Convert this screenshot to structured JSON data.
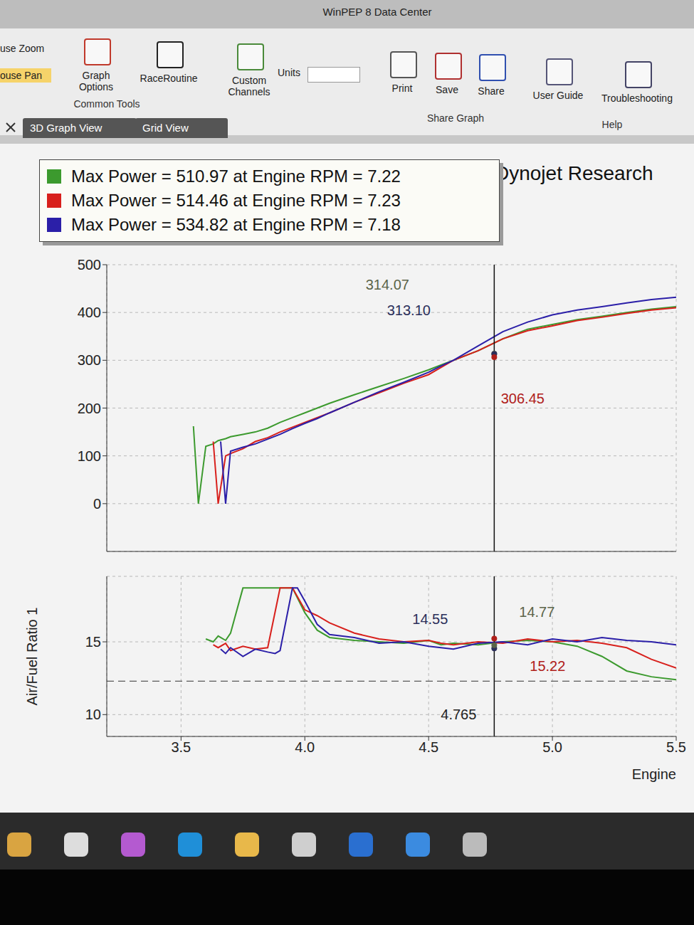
{
  "screen": {
    "window_title": "WinPEP 8 Data Center",
    "toolbar": [
      "use Zoom",
      "ouse Pan",
      "Graph Options",
      "RaceRoutine",
      "Custom Channels",
      "Units",
      "Print",
      "Save",
      "Share",
      "User Guide",
      "Troubleshooting"
    ],
    "groups": [
      "Common Tools",
      "Share Graph",
      "Help"
    ],
    "tabs": [
      "3D Graph View",
      "Grid View"
    ],
    "brand": "Dynojet Research"
  },
  "chart_data": [
    {
      "type": "line",
      "legend": "top-left",
      "grid": true,
      "tick_labels": "y",
      "cursor": 4.765,
      "xlim": [
        3.2,
        5.5
      ],
      "xticks": [
        3.5,
        4.0,
        4.5,
        5.0,
        5.5
      ],
      "ylim": [
        -100,
        500
      ],
      "yticks": [
        0,
        100,
        200,
        300,
        400,
        500
      ],
      "x": [
        3.55,
        3.57,
        3.6,
        3.63,
        3.65,
        3.66,
        3.68,
        3.7,
        3.75,
        3.8,
        3.85,
        3.88,
        3.9,
        3.95,
        3.97,
        4.0,
        4.05,
        4.1,
        4.2,
        4.3,
        4.4,
        4.5,
        4.55,
        4.6,
        4.7,
        4.8,
        4.9,
        5.0,
        5.1,
        5.2,
        5.3,
        5.4,
        5.5
      ],
      "series": [
        {
          "name": "Max Power = 510.97 at Engine RPM = 7.22",
          "color": "#3c9a2e",
          "values": [
            162,
            0,
            120,
            125,
            132,
            null,
            136,
            140,
            145,
            150,
            158,
            null,
            170,
            180,
            null,
            190,
            200,
            210,
            228,
            245,
            262,
            280,
            290,
            300,
            320,
            345,
            365,
            375,
            385,
            392,
            400,
            407,
            412
          ]
        },
        {
          "name": "Max Power = 514.46 at Engine RPM = 7.23",
          "color": "#d8201c",
          "values": [
            null,
            null,
            null,
            130,
            0,
            null,
            100,
            105,
            115,
            130,
            138,
            null,
            150,
            160,
            null,
            170,
            180,
            190,
            212,
            232,
            252,
            270,
            285,
            300,
            320,
            345,
            362,
            372,
            383,
            390,
            398,
            405,
            410
          ]
        },
        {
          "name": "Max Power = 534.82 at Engine RPM = 7.18",
          "color": "#2b1fa8",
          "values": [
            null,
            null,
            null,
            null,
            null,
            130,
            0,
            110,
            118,
            125,
            135,
            null,
            145,
            157,
            null,
            168,
            178,
            190,
            212,
            234,
            254,
            275,
            288,
            300,
            330,
            360,
            380,
            395,
            405,
            412,
            420,
            427,
            432
          ]
        }
      ],
      "annotations": [
        {
          "x": 4.765,
          "y": 314.07,
          "label": "314.07",
          "color": "#5b6449"
        },
        {
          "x": 4.765,
          "y": 313.1,
          "label": "313.10",
          "color": "#2b2f5a"
        },
        {
          "x": 4.765,
          "y": 306.45,
          "label": "306.45",
          "color": "#b0201a"
        }
      ]
    },
    {
      "type": "line",
      "grid": true,
      "cursor": 4.765,
      "reference_line": 12.3,
      "y_label": "Air/Fuel Ratio 1",
      "x_label": "Engine",
      "xlim": [
        3.2,
        5.5
      ],
      "xticks": [
        3.5,
        {
          "value": 4.0,
          "label": "4.0"
        },
        4.5,
        {
          "value": 5.0,
          "label": "5.0"
        },
        5.5
      ],
      "ylim": [
        8.5,
        19.5
      ],
      "yticks": [
        10,
        15
      ],
      "x": [
        3.55,
        3.57,
        3.6,
        3.63,
        3.65,
        3.66,
        3.68,
        3.7,
        3.75,
        3.8,
        3.85,
        3.88,
        3.9,
        3.95,
        3.97,
        4.0,
        4.05,
        4.1,
        4.2,
        4.3,
        4.4,
        4.5,
        4.55,
        4.6,
        4.7,
        4.8,
        4.9,
        5.0,
        5.1,
        5.2,
        5.3,
        5.4,
        5.5
      ],
      "series": [
        {
          "color": "#3c9a2e",
          "values": [
            null,
            null,
            15.2,
            15.0,
            15.4,
            null,
            15.1,
            15.6,
            18.7,
            18.7,
            18.7,
            null,
            18.7,
            18.7,
            null,
            17.0,
            15.8,
            15.3,
            15.1,
            15.0,
            14.9,
            15.1,
            14.8,
            14.9,
            14.8,
            15.0,
            15.1,
            15.0,
            14.7,
            14.0,
            13.0,
            12.6,
            12.4
          ]
        },
        {
          "color": "#d8201c",
          "values": [
            null,
            null,
            null,
            14.8,
            14.6,
            null,
            14.9,
            14.4,
            14.7,
            14.5,
            14.6,
            null,
            18.7,
            18.7,
            null,
            17.2,
            16.8,
            16.3,
            15.6,
            15.2,
            15.0,
            15.1,
            14.9,
            14.8,
            15.0,
            14.9,
            15.2,
            15.0,
            15.1,
            14.9,
            14.6,
            13.8,
            13.2
          ]
        },
        {
          "color": "#2b1fa8",
          "values": [
            null,
            null,
            null,
            null,
            null,
            14.5,
            14.2,
            14.6,
            14.0,
            14.5,
            14.3,
            14.2,
            14.4,
            18.7,
            18.7,
            17.8,
            16.2,
            15.5,
            15.3,
            14.9,
            15.0,
            14.7,
            14.6,
            14.5,
            14.9,
            15.0,
            14.8,
            15.2,
            15.0,
            15.3,
            15.1,
            15.0,
            14.8
          ]
        }
      ],
      "annotations": [
        {
          "x": 4.765,
          "y": 14.55,
          "label": "14.55",
          "color": "#2b2f5a"
        },
        {
          "x": 4.765,
          "y": 14.77,
          "label": "14.77",
          "color": "#5b6449"
        },
        {
          "x": 4.765,
          "y": 15.22,
          "label": "15.22",
          "color": "#b0201a"
        }
      ]
    }
  ]
}
